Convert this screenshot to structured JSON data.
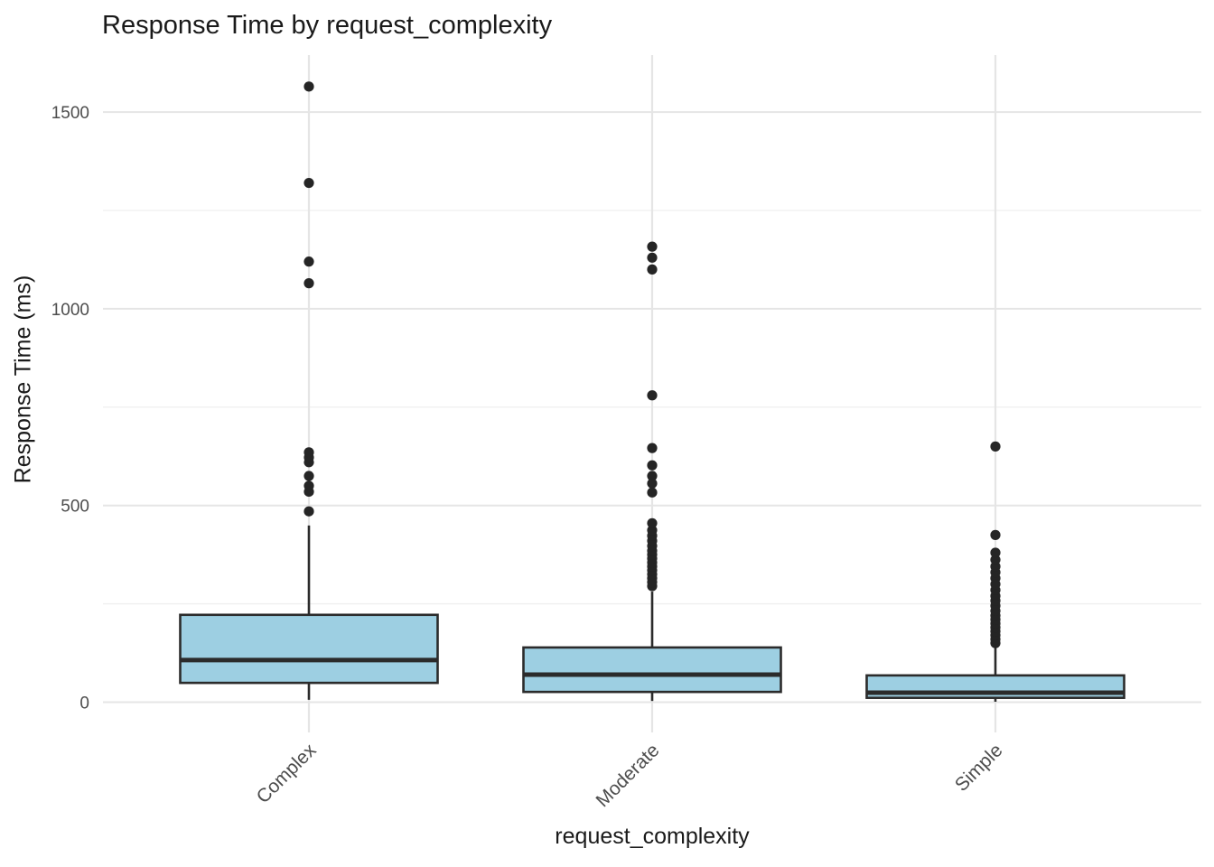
{
  "chart_data": {
    "type": "box",
    "title": "Response Time by request_complexity",
    "xlabel": "request_complexity",
    "ylabel": "Response Time (ms)",
    "categories": [
      "Complex",
      "Moderate",
      "Simple"
    ],
    "y_major_ticks": [
      0,
      500,
      1000,
      1500
    ],
    "y_tick_labels": [
      "0",
      "500",
      "1000",
      "1500"
    ],
    "y_minor_ticks": [
      250,
      750,
      1250
    ],
    "ylim": [
      -77,
      1645
    ],
    "grid": true,
    "legend": false,
    "series": [
      {
        "name": "Complex",
        "whisker_low": 6,
        "q1": 49,
        "median": 107,
        "q3": 222,
        "whisker_high": 449,
        "outliers": [
          485,
          535,
          550,
          575,
          610,
          622,
          635,
          1065,
          1120,
          1320,
          1565
        ]
      },
      {
        "name": "Moderate",
        "whisker_low": 3,
        "q1": 26,
        "median": 70,
        "q3": 139,
        "whisker_high": 281,
        "outliers": [
          295,
          305,
          315,
          325,
          335,
          345,
          355,
          365,
          375,
          385,
          397,
          410,
          423,
          437,
          455,
          533,
          556,
          575,
          602,
          646,
          780,
          1100,
          1130,
          1158
        ]
      },
      {
        "name": "Simple",
        "whisker_low": 1,
        "q1": 11,
        "median": 24,
        "q3": 68,
        "whisker_high": 141,
        "outliers": [
          150,
          160,
          170,
          180,
          190,
          200,
          210,
          220,
          232,
          245,
          258,
          270,
          285,
          300,
          315,
          330,
          345,
          362,
          380,
          425,
          650
        ]
      }
    ],
    "colors": {
      "box_fill": "#9dcfe2",
      "box_stroke": "#2b2b2b",
      "outlier": "#252525",
      "grid_major": "#e5e5e5",
      "grid_minor": "#f0f0f0",
      "tick_label": "#4d4d4d",
      "text": "#1a1a1a"
    }
  }
}
